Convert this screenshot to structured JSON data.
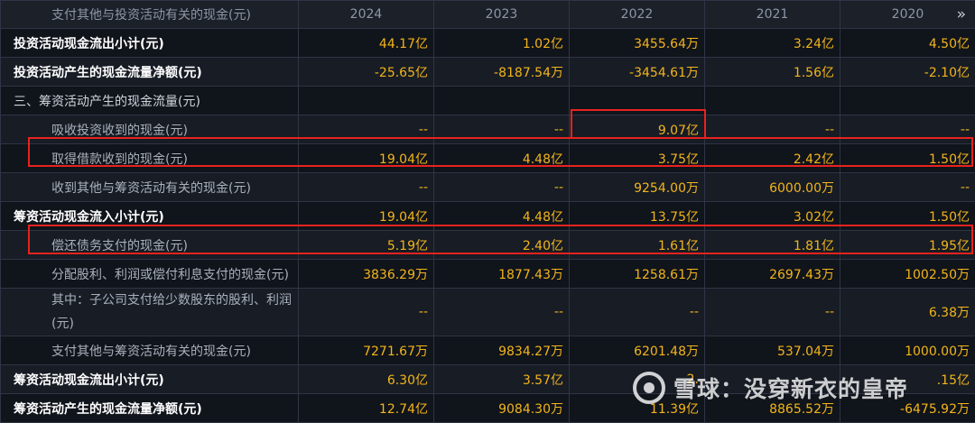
{
  "header": {
    "label": "支付其他与投资活动有关的现金(元)",
    "years": [
      "2024",
      "2023",
      "2022",
      "2021",
      "2020"
    ]
  },
  "rows": [
    {
      "label": "投资活动现金流出小计(元)",
      "values": [
        "44.17亿",
        "1.02亿",
        "3455.64万",
        "3.24亿",
        "4.50亿"
      ]
    },
    {
      "label": "投资活动产生的现金流量净额(元)",
      "values": [
        "-25.65亿",
        "-8187.54万",
        "-3454.61万",
        "1.56亿",
        "-2.10亿"
      ]
    },
    {
      "label": "三、筹资活动产生的现金流量(元)",
      "values": [
        "",
        "",
        "",
        "",
        ""
      ]
    },
    {
      "label": "吸收投资收到的现金(元)",
      "values": [
        "--",
        "--",
        "9.07亿",
        "--",
        "--"
      ]
    },
    {
      "label": "取得借款收到的现金(元)",
      "values": [
        "19.04亿",
        "4.48亿",
        "3.75亿",
        "2.42亿",
        "1.50亿"
      ]
    },
    {
      "label": "收到其他与筹资活动有关的现金(元)",
      "values": [
        "--",
        "--",
        "9254.00万",
        "6000.00万",
        "--"
      ]
    },
    {
      "label": "筹资活动现金流入小计(元)",
      "values": [
        "19.04亿",
        "4.48亿",
        "13.75亿",
        "3.02亿",
        "1.50亿"
      ]
    },
    {
      "label": "偿还债务支付的现金(元)",
      "values": [
        "5.19亿",
        "2.40亿",
        "1.61亿",
        "1.81亿",
        "1.95亿"
      ]
    },
    {
      "label": "分配股利、利润或偿付利息支付的现金(元)",
      "values": [
        "3836.29万",
        "1877.43万",
        "1258.61万",
        "2697.43万",
        "1002.50万"
      ]
    },
    {
      "label": "其中：子公司支付给少数股东的股利、利润(元)",
      "values": [
        "--",
        "--",
        "--",
        "--",
        "6.38万"
      ]
    },
    {
      "label": "支付其他与筹资活动有关的现金(元)",
      "values": [
        "7271.67万",
        "9834.27万",
        "6201.48万",
        "537.04万",
        "1000.00万"
      ]
    },
    {
      "label": "筹资活动现金流出小计(元)",
      "values": [
        "6.30亿",
        "3.57亿",
        "2.",
        "",
        ".15亿"
      ]
    },
    {
      "label": "筹资活动产生的现金流量净额(元)",
      "values": [
        "12.74亿",
        "9084.30万",
        "11.39亿",
        "8865.52万",
        "-6475.92万"
      ]
    }
  ],
  "watermark": {
    "text": "雪球：没穿新衣的皇帝",
    "icon": "snowball-logo-icon"
  }
}
